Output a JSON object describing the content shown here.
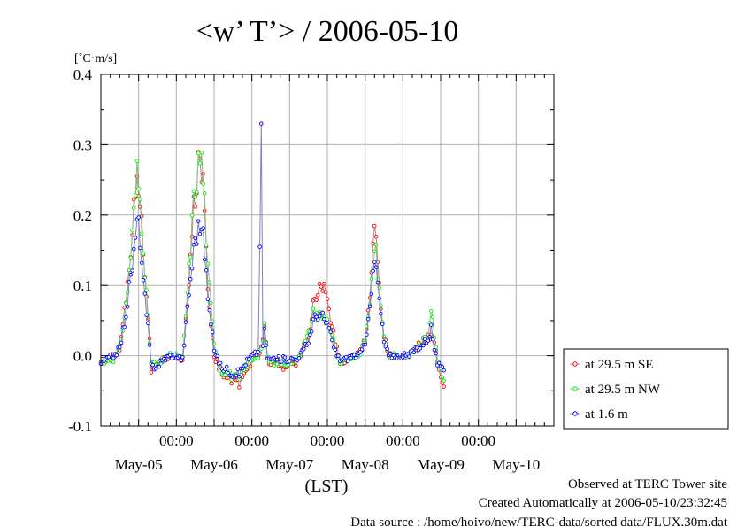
{
  "chart_data": {
    "type": "line",
    "title": "<w’ T’> / 2006-05-10",
    "ylabel_unit": "[˚C·m/s]",
    "xlabel": "(LST)",
    "ylim": [
      -0.1,
      0.4
    ],
    "y_ticks": [
      "0.4",
      "0.3",
      "0.2",
      "0.1",
      "0.0",
      "-0.1"
    ],
    "x_range_hours": [
      -72,
      72
    ],
    "x_time_ticks": [
      "00:00",
      "00:00",
      "00:00",
      "00:00",
      "00:00"
    ],
    "x_day_labels": [
      "May-05",
      "May-06",
      "May-07",
      "May-08",
      "May-09",
      "May-10"
    ],
    "grid": true,
    "legend_position": "bottom-right-outside",
    "series": [
      {
        "name": "at 29.5 m SE",
        "color": "#ff0000",
        "line_color": "#c08080",
        "anchors": [
          [
            -72,
            -0.01
          ],
          [
            -70,
            -0.005
          ],
          [
            -68,
            0.0
          ],
          [
            -66,
            0.01
          ],
          [
            -64,
            0.08
          ],
          [
            -62,
            0.18
          ],
          [
            -60.5,
            0.27
          ],
          [
            -59.5,
            0.23
          ],
          [
            -58.5,
            0.15
          ],
          [
            -57,
            0.06
          ],
          [
            -56,
            -0.02
          ],
          [
            -54,
            -0.015
          ],
          [
            -52,
            -0.005
          ],
          [
            -50,
            0.0
          ],
          [
            -48,
            0.0
          ],
          [
            -46,
            -0.01
          ],
          [
            -44,
            0.1
          ],
          [
            -42.5,
            0.21
          ],
          [
            -41,
            0.27
          ],
          [
            -40.2,
            0.285
          ],
          [
            -39,
            0.21
          ],
          [
            -38,
            0.1
          ],
          [
            -36,
            0.0
          ],
          [
            -34,
            -0.02
          ],
          [
            -32,
            -0.03
          ],
          [
            -30,
            -0.035
          ],
          [
            -28,
            -0.04
          ],
          [
            -26,
            -0.02
          ],
          [
            -24,
            -0.01
          ],
          [
            -22,
            0.0
          ],
          [
            -20.5,
            0.02
          ],
          [
            -20,
            0.05
          ],
          [
            -19.3,
            0.01
          ],
          [
            -18.5,
            -0.015
          ],
          [
            -17,
            -0.01
          ],
          [
            -14,
            -0.015
          ],
          [
            -12,
            -0.01
          ],
          [
            -10,
            -0.01
          ],
          [
            -8,
            0.005
          ],
          [
            -6,
            0.03
          ],
          [
            -4.5,
            0.07
          ],
          [
            -3,
            0.095
          ],
          [
            -1.5,
            0.1
          ],
          [
            0,
            0.08
          ],
          [
            1.5,
            0.04
          ],
          [
            3,
            0.01
          ],
          [
            4,
            -0.01
          ],
          [
            6,
            -0.005
          ],
          [
            8,
            0.0
          ],
          [
            10,
            0.005
          ],
          [
            12,
            0.02
          ],
          [
            13.5,
            0.09
          ],
          [
            14.5,
            0.15
          ],
          [
            15.2,
            0.2
          ],
          [
            16,
            0.13
          ],
          [
            17,
            0.07
          ],
          [
            18,
            0.03
          ],
          [
            19.5,
            0.0
          ],
          [
            22,
            0.0
          ],
          [
            26,
            0.0
          ],
          [
            28,
            0.01
          ],
          [
            30,
            0.02
          ],
          [
            32,
            0.025
          ],
          [
            33,
            0.03
          ],
          [
            34,
            0.02
          ],
          [
            35,
            -0.01
          ],
          [
            36,
            -0.03
          ],
          [
            37,
            -0.05
          ]
        ]
      },
      {
        "name": "at 29.5 m NW",
        "color": "#00ee00",
        "line_color": "#80c080",
        "anchors": [
          [
            -72,
            -0.01
          ],
          [
            -70,
            -0.005
          ],
          [
            -68,
            -0.005
          ],
          [
            -66,
            0.01
          ],
          [
            -64,
            0.07
          ],
          [
            -62,
            0.17
          ],
          [
            -60.5,
            0.26
          ],
          [
            -59.5,
            0.22
          ],
          [
            -58.5,
            0.16
          ],
          [
            -57,
            0.05
          ],
          [
            -56,
            -0.01
          ],
          [
            -54,
            -0.015
          ],
          [
            -52,
            -0.005
          ],
          [
            -50,
            0.0
          ],
          [
            -48,
            0.0
          ],
          [
            -46,
            -0.005
          ],
          [
            -44,
            0.12
          ],
          [
            -42.5,
            0.22
          ],
          [
            -41,
            0.27
          ],
          [
            -40.2,
            0.29
          ],
          [
            -39,
            0.22
          ],
          [
            -38,
            0.12
          ],
          [
            -36,
            0.02
          ],
          [
            -34,
            -0.02
          ],
          [
            -32,
            -0.025
          ],
          [
            -30,
            -0.03
          ],
          [
            -28,
            -0.035
          ],
          [
            -26,
            -0.015
          ],
          [
            -24,
            -0.005
          ],
          [
            -22,
            0.0
          ],
          [
            -20.5,
            0.02
          ],
          [
            -20,
            0.04
          ],
          [
            -19.3,
            0.005
          ],
          [
            -18.5,
            -0.01
          ],
          [
            -17,
            -0.01
          ],
          [
            -14,
            -0.01
          ],
          [
            -12,
            -0.01
          ],
          [
            -10,
            -0.005
          ],
          [
            -8,
            0.01
          ],
          [
            -6,
            0.03
          ],
          [
            -4.5,
            0.06
          ],
          [
            -3,
            0.06
          ],
          [
            -1.5,
            0.055
          ],
          [
            0,
            0.05
          ],
          [
            1.5,
            0.03
          ],
          [
            3,
            0.0
          ],
          [
            4,
            -0.015
          ],
          [
            6,
            -0.005
          ],
          [
            8,
            0.0
          ],
          [
            10,
            0.0
          ],
          [
            12,
            0.02
          ],
          [
            13.5,
            0.08
          ],
          [
            14.5,
            0.13
          ],
          [
            15.2,
            0.18
          ],
          [
            16,
            0.12
          ],
          [
            17,
            0.07
          ],
          [
            18,
            0.03
          ],
          [
            19.5,
            0.0
          ],
          [
            22,
            0.0
          ],
          [
            26,
            0.0
          ],
          [
            28,
            0.01
          ],
          [
            30,
            0.02
          ],
          [
            32,
            0.03
          ],
          [
            33,
            0.065
          ],
          [
            34,
            0.03
          ],
          [
            35,
            -0.005
          ],
          [
            36,
            -0.02
          ],
          [
            37,
            -0.03
          ]
        ]
      },
      {
        "name": "at 1.6 m",
        "color": "#0000ff",
        "line_color": "#8080c0",
        "anchors": [
          [
            -72,
            -0.01
          ],
          [
            -70,
            -0.005
          ],
          [
            -68,
            0.0
          ],
          [
            -66,
            0.01
          ],
          [
            -64,
            0.06
          ],
          [
            -62,
            0.13
          ],
          [
            -61,
            0.16
          ],
          [
            -60.5,
            0.195
          ],
          [
            -59.5,
            0.17
          ],
          [
            -58.5,
            0.1
          ],
          [
            -57,
            0.04
          ],
          [
            -56,
            -0.015
          ],
          [
            -54,
            -0.015
          ],
          [
            -52,
            -0.005
          ],
          [
            -50,
            0.0
          ],
          [
            -48,
            0.0
          ],
          [
            -46,
            -0.005
          ],
          [
            -44,
            0.09
          ],
          [
            -43,
            0.13
          ],
          [
            -42,
            0.17
          ],
          [
            -41,
            0.18
          ],
          [
            -40.2,
            0.19
          ],
          [
            -39,
            0.15
          ],
          [
            -38,
            0.08
          ],
          [
            -36,
            0.01
          ],
          [
            -34,
            -0.015
          ],
          [
            -32,
            -0.02
          ],
          [
            -30,
            -0.025
          ],
          [
            -28,
            -0.025
          ],
          [
            -26,
            -0.01
          ],
          [
            -24,
            0.0
          ],
          [
            -22,
            0.005
          ],
          [
            -21,
            0.33
          ],
          [
            -20.5,
            0.01
          ],
          [
            -20,
            0.04
          ],
          [
            -19.3,
            0.0
          ],
          [
            -18.5,
            -0.005
          ],
          [
            -17,
            -0.005
          ],
          [
            -14,
            -0.005
          ],
          [
            -12,
            -0.005
          ],
          [
            -10,
            -0.005
          ],
          [
            -8,
            0.005
          ],
          [
            -6,
            0.02
          ],
          [
            -4.5,
            0.05
          ],
          [
            -3,
            0.06
          ],
          [
            -1.5,
            0.055
          ],
          [
            0,
            0.045
          ],
          [
            1.5,
            0.02
          ],
          [
            3,
            0.0
          ],
          [
            4,
            -0.005
          ],
          [
            6,
            -0.005
          ],
          [
            8,
            0.0
          ],
          [
            10,
            0.0
          ],
          [
            12,
            0.015
          ],
          [
            13.5,
            0.08
          ],
          [
            14.5,
            0.11
          ],
          [
            15.2,
            0.14
          ],
          [
            16,
            0.1
          ],
          [
            17,
            0.06
          ],
          [
            18,
            0.02
          ],
          [
            19.5,
            0.0
          ],
          [
            22,
            0.0
          ],
          [
            26,
            0.0
          ],
          [
            28,
            0.01
          ],
          [
            30,
            0.015
          ],
          [
            32,
            0.025
          ],
          [
            33,
            0.04
          ],
          [
            34,
            0.01
          ],
          [
            35,
            -0.01
          ],
          [
            36,
            -0.02
          ],
          [
            37,
            -0.02
          ]
        ]
      }
    ]
  },
  "footer": {
    "line1": "Observed at TERC Tower site",
    "line2": "Created Automatically at 2006-05-10/23:32:45",
    "line3": "Data source : /home/hoivo/new/TERC-data/sorted  data/FLUX.30m.dat"
  }
}
